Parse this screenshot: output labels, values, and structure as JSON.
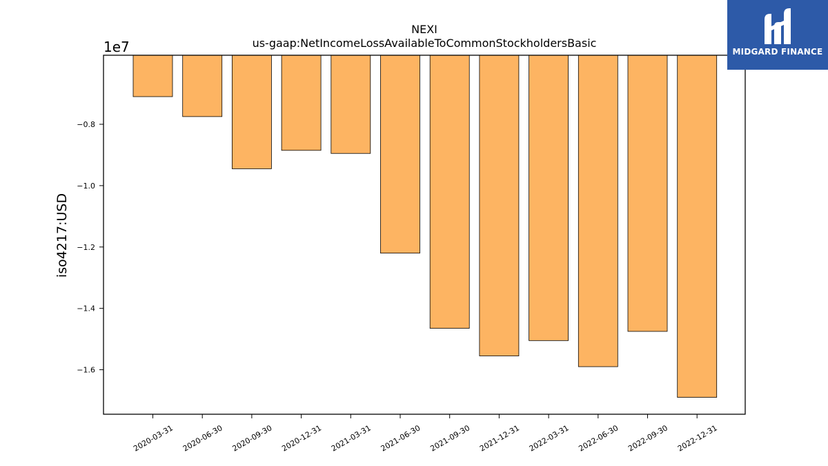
{
  "chart_data": {
    "type": "bar",
    "title": "NEXI",
    "subtitle": "us-gaap:NetIncomeLossAvailableToCommonStockholdersBasic",
    "xlabel": "",
    "ylabel": "iso4217:USD",
    "y_scale_label": "1e7",
    "categories": [
      "2020-03-31",
      "2020-06-30",
      "2020-09-30",
      "2020-12-31",
      "2021-03-31",
      "2021-06-30",
      "2021-09-30",
      "2021-12-31",
      "2022-03-31",
      "2022-06-30",
      "2022-09-30",
      "2022-12-31"
    ],
    "values": [
      -7100000,
      -7750000,
      -9450000,
      -8850000,
      -8950000,
      -12200000,
      -14650000,
      -15550000,
      -15050000,
      -15900000,
      -14750000,
      -16900000
    ],
    "ylim": [
      -17450000,
      -5750000
    ],
    "yticks": [
      -8000000,
      -10000000,
      -12000000,
      -14000000,
      -16000000
    ],
    "ytick_labels": [
      "−0.8",
      "−1.0",
      "−1.2",
      "−1.4",
      "−1.6"
    ],
    "bar_color": "#fdb462",
    "grid": false,
    "legend": "none"
  },
  "logo": {
    "text": "MIDGARD FINANCE",
    "background": "#2d5aa8"
  }
}
